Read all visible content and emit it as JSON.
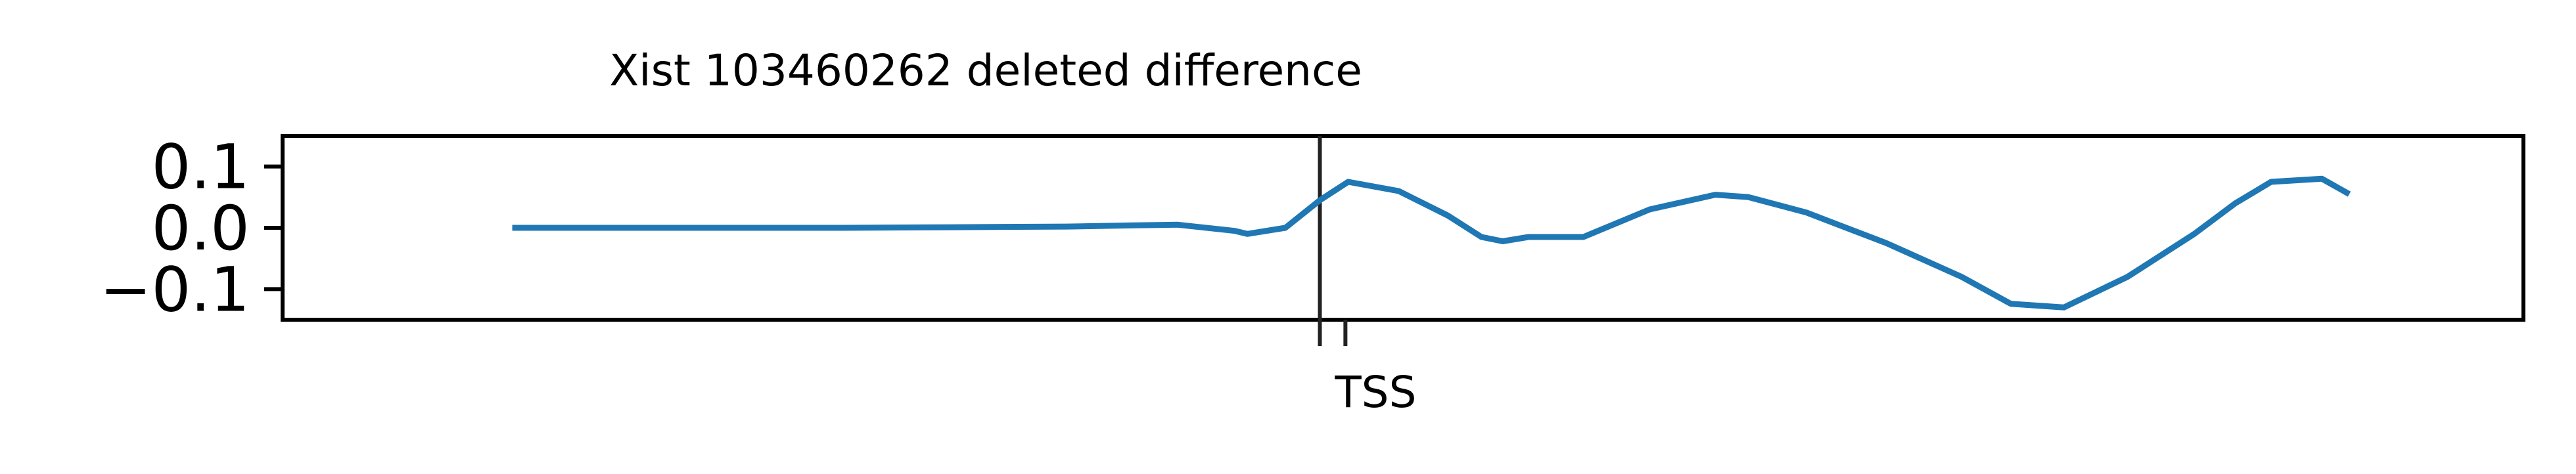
{
  "chart_data": {
    "type": "line",
    "title": "Xist 103460262 deleted difference",
    "xlabel": "",
    "ylabel": "",
    "xlim": [
      0,
      1
    ],
    "ylim": [
      -0.15,
      0.15
    ],
    "yticks": [
      {
        "value": 0.1,
        "label": "0.1"
      },
      {
        "value": 0.0,
        "label": "0.0"
      },
      {
        "value": -0.1,
        "label": "−0.1"
      }
    ],
    "x_tick_marks": [
      0.4629,
      0.4743
    ],
    "vertical_line": {
      "x": 0.4629,
      "color": "#222222"
    },
    "annotation": {
      "text": "TSS",
      "x": 0.4743
    },
    "grid": false,
    "legend": "none",
    "series": [
      {
        "color": "#1f77b4",
        "points": [
          [
            0.1025,
            0.0
          ],
          [
            0.15,
            0.0
          ],
          [
            0.2,
            0.0
          ],
          [
            0.25,
            0.0
          ],
          [
            0.3,
            0.001
          ],
          [
            0.35,
            0.002
          ],
          [
            0.38,
            0.004
          ],
          [
            0.3995,
            0.005
          ],
          [
            0.425,
            -0.005
          ],
          [
            0.4305,
            -0.01
          ],
          [
            0.4475,
            0.0
          ],
          [
            0.4629,
            0.045
          ],
          [
            0.4755,
            0.075
          ],
          [
            0.4981,
            0.06
          ],
          [
            0.52,
            0.02
          ],
          [
            0.535,
            -0.015
          ],
          [
            0.5445,
            -0.022
          ],
          [
            0.556,
            -0.015
          ],
          [
            0.5805,
            -0.015
          ],
          [
            0.6101,
            0.03
          ],
          [
            0.6394,
            0.054
          ],
          [
            0.6542,
            0.05
          ],
          [
            0.68,
            0.025
          ],
          [
            0.7157,
            -0.025
          ],
          [
            0.7493,
            -0.08
          ],
          [
            0.7712,
            -0.124
          ],
          [
            0.7949,
            -0.13
          ],
          [
            0.8233,
            -0.08
          ],
          [
            0.8531,
            -0.01
          ],
          [
            0.8714,
            0.04
          ],
          [
            0.8874,
            0.075
          ],
          [
            0.9101,
            0.08
          ],
          [
            0.9223,
            0.055
          ]
        ]
      }
    ]
  }
}
